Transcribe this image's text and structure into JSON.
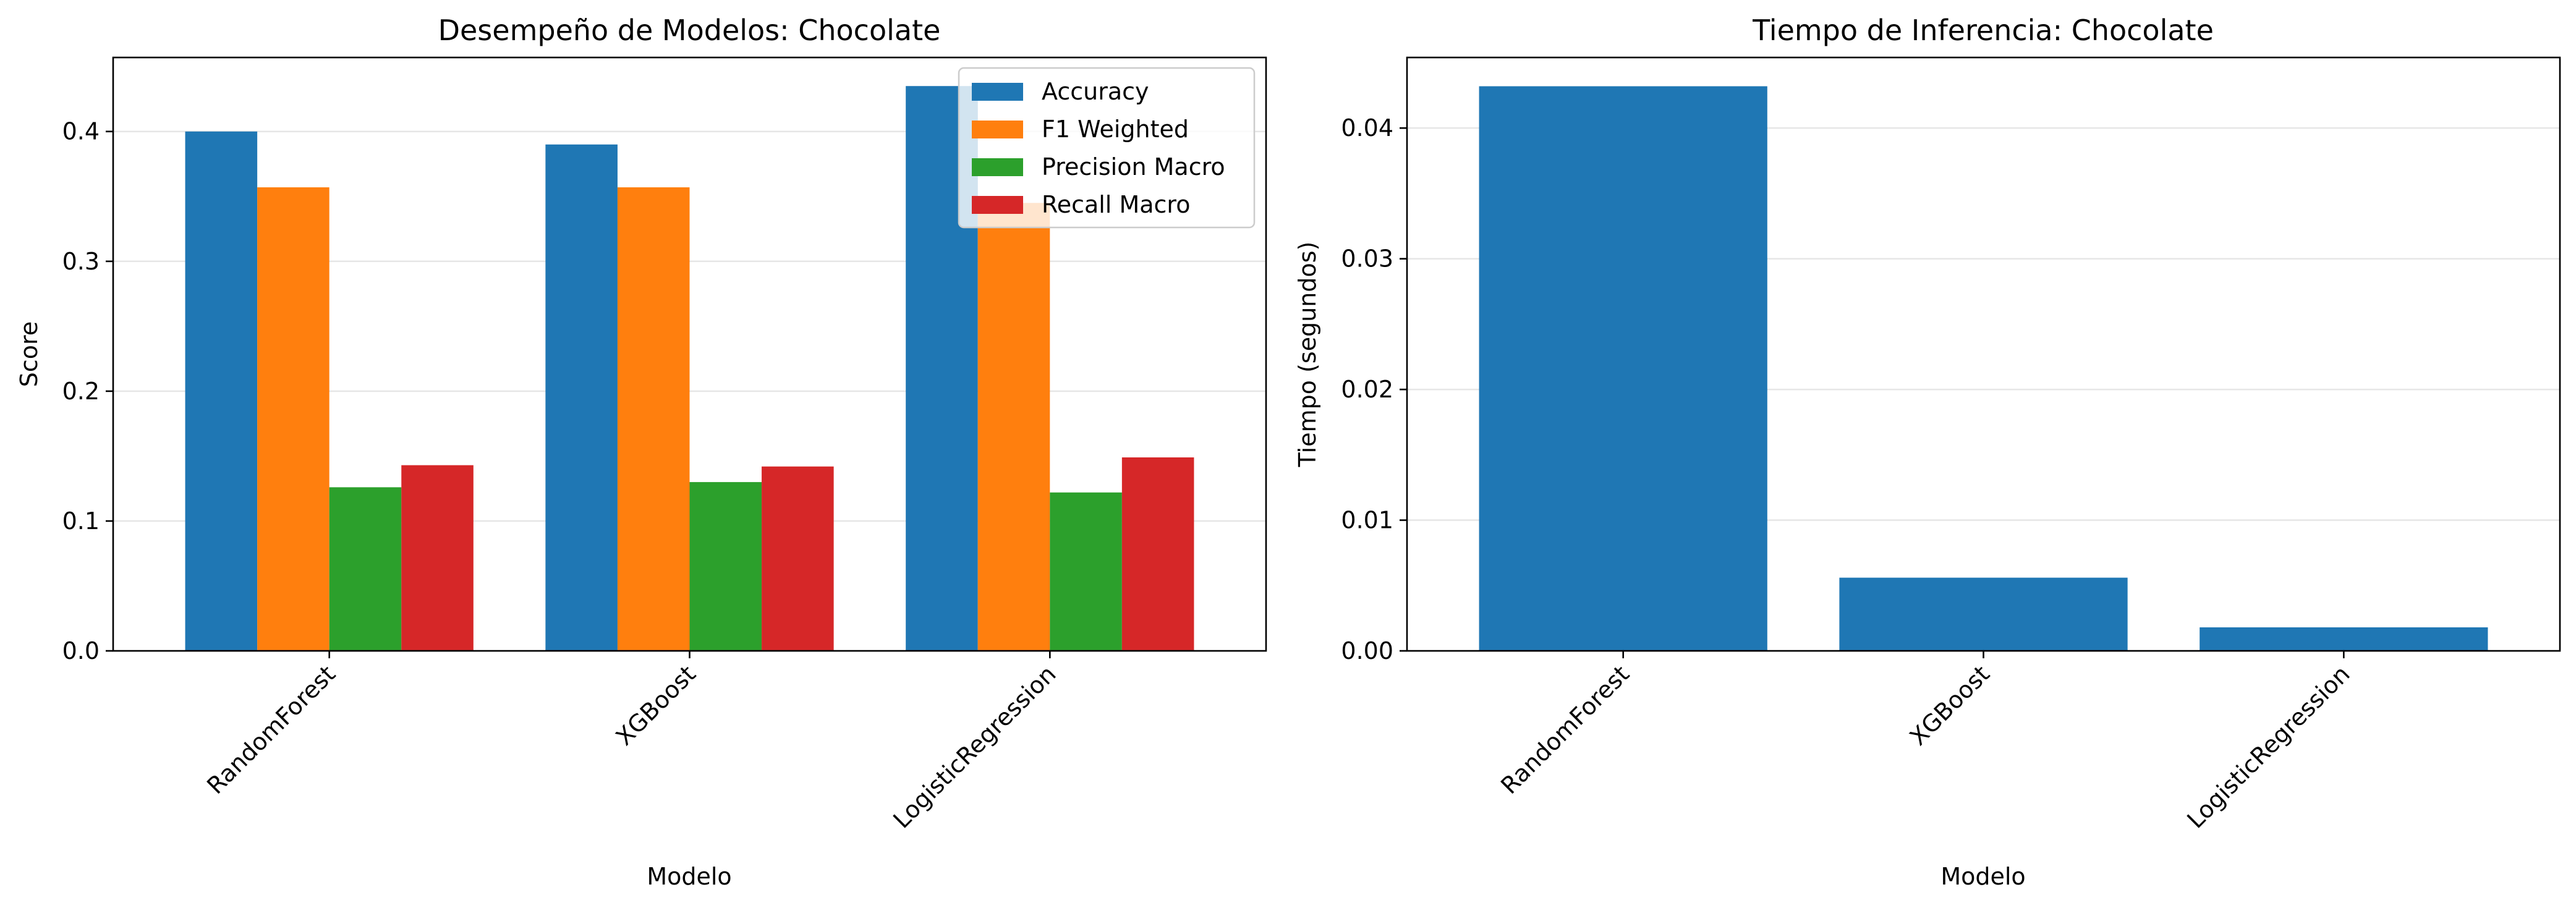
{
  "chart_data": [
    {
      "type": "bar",
      "title": "Desempeño de Modelos: Chocolate",
      "xlabel": "Modelo",
      "ylabel": "Score",
      "categories": [
        "RandomForest",
        "XGBoost",
        "LogisticRegression"
      ],
      "series": [
        {
          "name": "Accuracy",
          "values": [
            0.4,
            0.39,
            0.435
          ],
          "color": "#1f77b4"
        },
        {
          "name": "F1 Weighted",
          "values": [
            0.357,
            0.357,
            0.345
          ],
          "color": "#ff7f0e"
        },
        {
          "name": "Precision Macro",
          "values": [
            0.126,
            0.13,
            0.122
          ],
          "color": "#2ca02c"
        },
        {
          "name": "Recall Macro",
          "values": [
            0.143,
            0.142,
            0.149
          ],
          "color": "#d62728"
        }
      ],
      "ylim": [
        0,
        0.457
      ],
      "yticks": [
        0.0,
        0.1,
        0.2,
        0.3,
        0.4
      ],
      "ytick_labels": [
        "0.0",
        "0.1",
        "0.2",
        "0.3",
        "0.4"
      ],
      "grid": "y",
      "legend": "top-right"
    },
    {
      "type": "bar",
      "title": "Tiempo de Inferencia: Chocolate",
      "xlabel": "Modelo",
      "ylabel": "Tiempo (segundos)",
      "categories": [
        "RandomForest",
        "XGBoost",
        "LogisticRegression"
      ],
      "series": [
        {
          "values": [
            0.0432,
            0.0056,
            0.0018
          ],
          "color": "#1f77b4"
        }
      ],
      "ylim": [
        0,
        0.0454
      ],
      "yticks": [
        0.0,
        0.01,
        0.02,
        0.03,
        0.04
      ],
      "ytick_labels": [
        "0.00",
        "0.01",
        "0.02",
        "0.03",
        "0.04"
      ],
      "grid": "y"
    }
  ]
}
